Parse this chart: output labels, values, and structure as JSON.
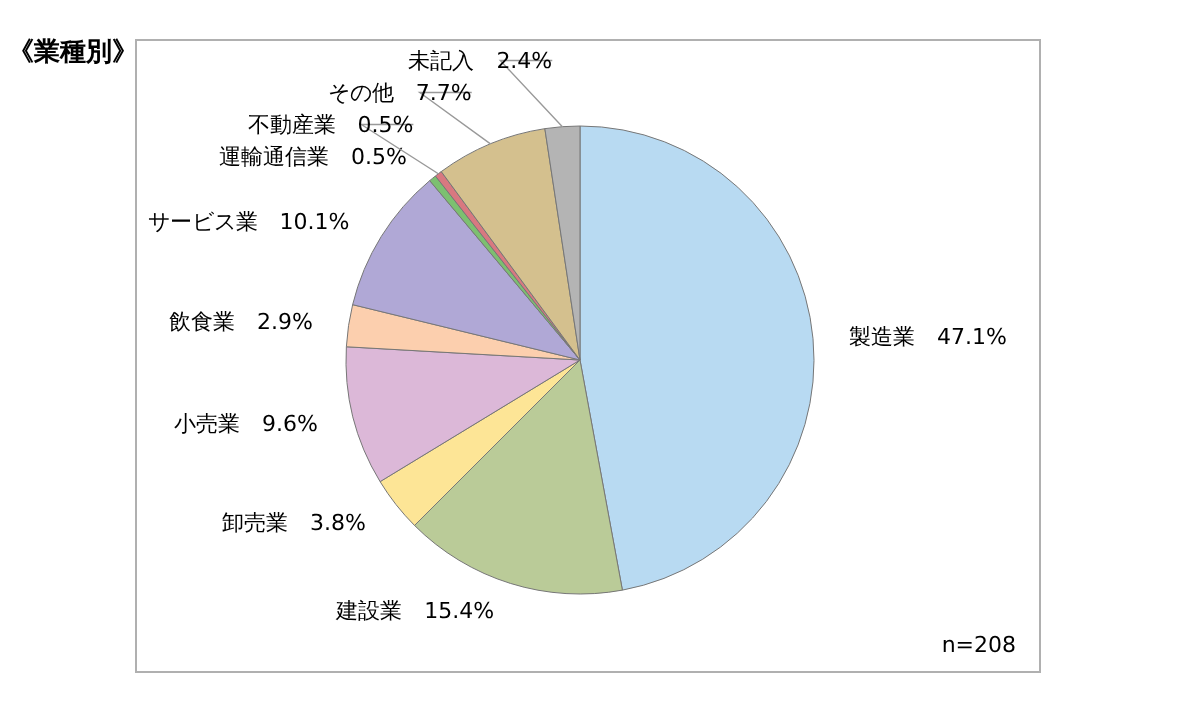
{
  "chart_data": {
    "type": "pie",
    "title": "《業種別》",
    "categories": [
      "製造業",
      "建設業",
      "卸売業",
      "小売業",
      "飲食業",
      "サービス業",
      "運輸通信業",
      "不動産業",
      "その他",
      "未記入"
    ],
    "values": [
      47.1,
      15.4,
      3.8,
      9.6,
      2.9,
      10.1,
      0.5,
      0.5,
      7.7,
      2.4
    ],
    "value_labels": [
      "47.1%",
      "15.4%",
      "3.8%",
      "9.6%",
      "2.9%",
      "10.1%",
      "0.5%",
      "0.5%",
      "7.7%",
      "2.4%"
    ],
    "colors": [
      "#b8daf2",
      "#bacb98",
      "#fde596",
      "#dcb8d8",
      "#fccfae",
      "#b0a8d6",
      "#7cc070",
      "#d87880",
      "#d4c08e",
      "#b4b4b4"
    ],
    "annotations": [
      "n=208"
    ],
    "legend": false
  }
}
